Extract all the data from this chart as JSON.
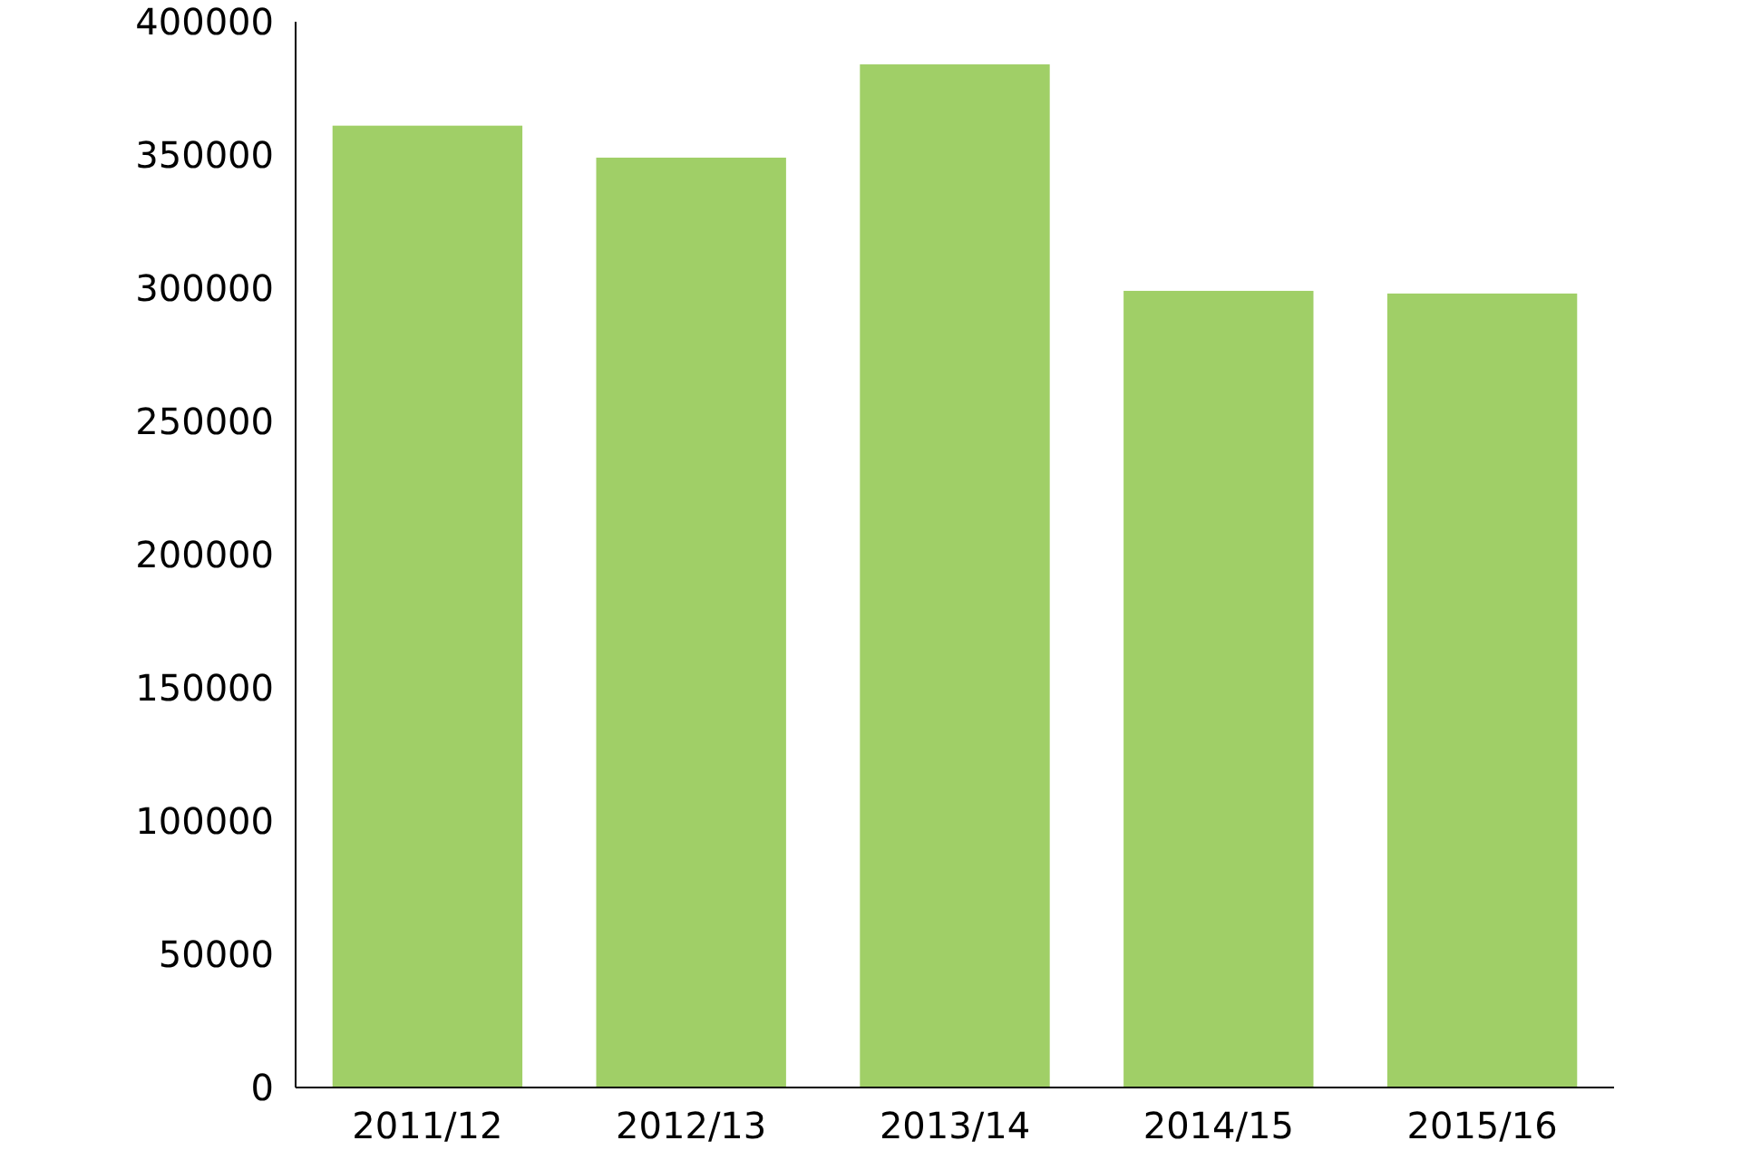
{
  "chart_data": {
    "type": "bar",
    "categories": [
      "2011/12",
      "2012/13",
      "2013/14",
      "2014/15",
      "2015/16"
    ],
    "values": [
      361000,
      349000,
      384000,
      299000,
      298000
    ],
    "color": "#a0cf67",
    "ylim": [
      0,
      400000
    ],
    "yticks": [
      0,
      50000,
      100000,
      150000,
      200000,
      250000,
      300000,
      350000,
      400000
    ],
    "grid": false
  }
}
